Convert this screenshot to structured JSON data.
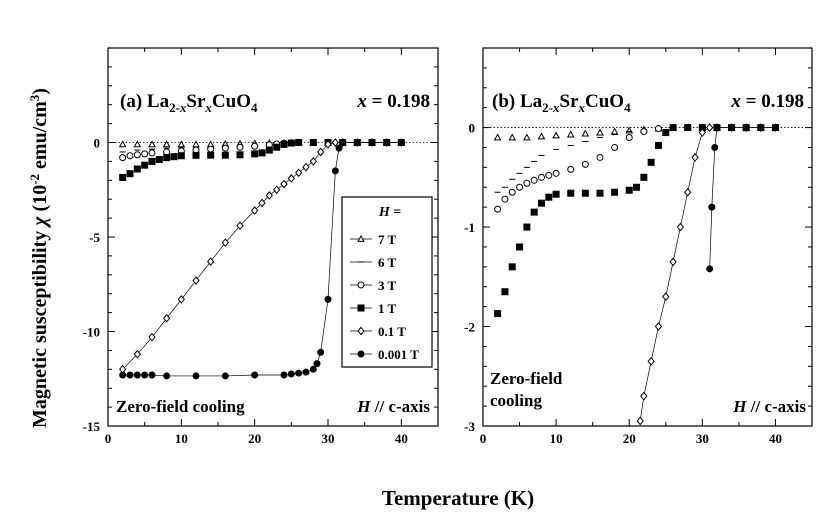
{
  "figure": {
    "xlabel": "Temperature (K)",
    "ylabel_text": "Magnetic susceptibility",
    "ylabel_symbol": "χ",
    "ylabel_units": "(10",
    "ylabel_units_exp": "-2",
    "ylabel_units_mid": " emu/cm",
    "ylabel_units_exp2": "3",
    "ylabel_units_end": ")"
  },
  "panel_a": {
    "label_prefix": "(a) La",
    "sub1": "2-",
    "sub1_italic": "x",
    "mid": "Sr",
    "sub2_italic": "x",
    "tail": "CuO",
    "sub3": "4",
    "x_label_italic": "x",
    "x_value": " = 0.198",
    "cooling": "Zero-field cooling",
    "axis_note_italic": "H",
    "axis_note": " // c-axis",
    "legend_title_italic": "H",
    "legend_title": " =",
    "legend": [
      "7 T",
      "6 T",
      "3 T",
      "1 T",
      "0.1 T",
      "0.001 T"
    ]
  },
  "panel_b": {
    "label_prefix": "(b) La",
    "sub1": "2-",
    "sub1_italic": "x",
    "mid": "Sr",
    "sub2_italic": "x",
    "tail": "CuO",
    "sub3": "4",
    "x_label_italic": "x",
    "x_value": " = 0.198",
    "cooling_line1": "Zero-field",
    "cooling_line2": "cooling",
    "axis_note_italic": "H",
    "axis_note": " // c-axis"
  },
  "chart_data": [
    {
      "type": "scatter",
      "title": "(a) La2-xSrxCuO4  x = 0.198",
      "xlabel": "Temperature (K)",
      "ylabel": "Magnetic susceptibility χ (10-2 emu/cm3)",
      "xlim": [
        0,
        45
      ],
      "ylim": [
        -15,
        5
      ],
      "xticks": [
        0,
        10,
        20,
        30,
        40
      ],
      "yticks": [
        -15,
        -10,
        -5,
        0
      ],
      "legend_position": "right-center",
      "series": [
        {
          "name": "7 T",
          "marker": "triangle-open",
          "x": [
            2,
            4,
            6,
            8,
            10,
            12,
            14,
            16,
            18,
            20,
            22,
            24,
            26,
            28,
            30,
            32,
            34,
            36,
            38,
            40
          ],
          "y": [
            -0.1,
            -0.1,
            -0.1,
            -0.1,
            -0.1,
            -0.1,
            -0.1,
            -0.08,
            -0.07,
            -0.05,
            -0.03,
            -0.02,
            -0.01,
            0,
            0,
            0,
            0,
            0,
            0,
            0
          ]
        },
        {
          "name": "6 T",
          "marker": "dash",
          "x": [
            2,
            4,
            6,
            8,
            10,
            12,
            14,
            16,
            18,
            20,
            22,
            24,
            26,
            28,
            30,
            32,
            34,
            36,
            38,
            40
          ],
          "y": [
            -0.5,
            -0.4,
            -0.35,
            -0.3,
            -0.28,
            -0.25,
            -0.22,
            -0.2,
            -0.15,
            -0.1,
            -0.06,
            -0.02,
            -0.01,
            0,
            0,
            0,
            0,
            0,
            0,
            0
          ]
        },
        {
          "name": "3 T",
          "marker": "circle-open",
          "x": [
            2,
            3,
            4,
            5,
            6,
            8,
            10,
            12,
            14,
            16,
            18,
            20,
            22,
            23,
            24,
            25,
            26,
            28,
            30,
            32,
            34,
            36,
            38,
            40
          ],
          "y": [
            -0.8,
            -0.7,
            -0.65,
            -0.6,
            -0.55,
            -0.5,
            -0.45,
            -0.4,
            -0.35,
            -0.3,
            -0.25,
            -0.2,
            -0.12,
            -0.08,
            -0.03,
            -0.01,
            0,
            0,
            0,
            0,
            0,
            0,
            0,
            0
          ]
        },
        {
          "name": "1 T",
          "marker": "square-filled",
          "x": [
            2,
            3,
            4,
            5,
            6,
            7,
            8,
            9,
            10,
            12,
            14,
            16,
            18,
            20,
            21,
            22,
            23,
            24,
            25,
            26,
            28,
            30,
            32,
            34,
            36,
            38,
            40
          ],
          "y": [
            -1.85,
            -1.65,
            -1.4,
            -1.2,
            -1.0,
            -0.9,
            -0.8,
            -0.75,
            -0.7,
            -0.68,
            -0.67,
            -0.67,
            -0.65,
            -0.6,
            -0.55,
            -0.4,
            -0.25,
            -0.1,
            -0.03,
            0,
            0,
            0,
            0,
            0,
            0,
            0,
            0
          ]
        },
        {
          "name": "0.1 T",
          "marker": "diamond-open",
          "x": [
            2,
            4,
            6,
            8,
            10,
            12,
            14,
            16,
            18,
            20,
            21,
            22,
            23,
            24,
            25,
            26,
            27,
            28,
            29,
            30,
            31,
            32,
            34,
            36,
            38,
            40
          ],
          "y": [
            -12.0,
            -11.2,
            -10.3,
            -9.3,
            -8.3,
            -7.3,
            -6.3,
            -5.3,
            -4.4,
            -3.6,
            -3.2,
            -2.8,
            -2.5,
            -2.2,
            -1.9,
            -1.6,
            -1.3,
            -1.0,
            -0.5,
            -0.1,
            0,
            0,
            0,
            0,
            0,
            0
          ]
        },
        {
          "name": "0.001 T",
          "marker": "circle-filled",
          "x": [
            2,
            3,
            4,
            5,
            6,
            8,
            12,
            16,
            20,
            24,
            25,
            26,
            27,
            28,
            28.5,
            29,
            30,
            31,
            31.5,
            32,
            34,
            36,
            38,
            40
          ],
          "y": [
            -12.3,
            -12.3,
            -12.3,
            -12.3,
            -12.3,
            -12.35,
            -12.35,
            -12.35,
            -12.3,
            -12.3,
            -12.25,
            -12.2,
            -12.15,
            -12.0,
            -11.7,
            -11.1,
            -8.3,
            -1.5,
            -0.3,
            0,
            0,
            0,
            0,
            0
          ]
        }
      ]
    },
    {
      "type": "scatter",
      "title": "(b) La2-xSrxCuO4  x = 0.198",
      "xlabel": "Temperature (K)",
      "ylabel": "Magnetic susceptibility χ (10-2 emu/cm3)",
      "xlim": [
        0,
        45
      ],
      "ylim": [
        -3,
        0.8
      ],
      "xticks": [
        0,
        10,
        20,
        30,
        40
      ],
      "yticks": [
        -3,
        -2,
        -1,
        0
      ],
      "series": [
        {
          "name": "7 T",
          "marker": "triangle-open",
          "x": [
            2,
            4,
            6,
            8,
            10,
            12,
            14,
            16,
            18,
            20,
            22,
            24,
            26,
            28,
            30,
            32,
            34,
            36,
            38,
            40
          ],
          "y": [
            -0.1,
            -0.1,
            -0.1,
            -0.09,
            -0.08,
            -0.07,
            -0.06,
            -0.05,
            -0.04,
            -0.03,
            -0.02,
            -0.01,
            0,
            0,
            0,
            0,
            0,
            0,
            0,
            0
          ]
        },
        {
          "name": "6 T",
          "marker": "dash",
          "x": [
            2,
            3,
            4,
            5,
            6,
            7,
            8,
            10,
            12,
            14,
            16,
            18,
            20,
            22,
            24,
            26,
            28,
            30,
            32,
            34,
            36,
            38,
            40
          ],
          "y": [
            -0.65,
            -0.6,
            -0.52,
            -0.46,
            -0.4,
            -0.34,
            -0.28,
            -0.22,
            -0.18,
            -0.14,
            -0.1,
            -0.07,
            -0.04,
            -0.02,
            -0.01,
            0,
            0,
            0,
            0,
            0,
            0,
            0,
            0
          ]
        },
        {
          "name": "3 T",
          "marker": "circle-open",
          "x": [
            2,
            3,
            4,
            5,
            6,
            7,
            8,
            9,
            10,
            12,
            14,
            16,
            18,
            20,
            22,
            24,
            26,
            28,
            30,
            32,
            34,
            36,
            38,
            40
          ],
          "y": [
            -0.82,
            -0.72,
            -0.65,
            -0.6,
            -0.56,
            -0.53,
            -0.5,
            -0.48,
            -0.46,
            -0.42,
            -0.37,
            -0.3,
            -0.2,
            -0.1,
            -0.04,
            -0.01,
            0,
            0,
            0,
            0,
            0,
            0,
            0,
            0
          ]
        },
        {
          "name": "1 T",
          "marker": "square-filled",
          "x": [
            2,
            3,
            4,
            5,
            6,
            7,
            8,
            9,
            10,
            12,
            14,
            16,
            18,
            20,
            21,
            22,
            23,
            24,
            25,
            26,
            28,
            30,
            32,
            34,
            36,
            38,
            40
          ],
          "y": [
            -1.87,
            -1.65,
            -1.4,
            -1.2,
            -1.0,
            -0.85,
            -0.76,
            -0.7,
            -0.67,
            -0.66,
            -0.66,
            -0.66,
            -0.65,
            -0.63,
            -0.6,
            -0.5,
            -0.35,
            -0.18,
            -0.05,
            0,
            0,
            0,
            0,
            0,
            0,
            0,
            0
          ]
        },
        {
          "name": "0.1 T",
          "marker": "diamond-open",
          "x": [
            21.5,
            22,
            23,
            24,
            25,
            26,
            27,
            28,
            29,
            30,
            31,
            32,
            34,
            36,
            38,
            40
          ],
          "y": [
            -2.95,
            -2.7,
            -2.35,
            -2.0,
            -1.7,
            -1.35,
            -1.0,
            -0.65,
            -0.3,
            -0.05,
            0,
            0,
            0,
            0,
            0,
            0
          ]
        },
        {
          "name": "0.001 T",
          "marker": "circle-filled",
          "x": [
            31,
            31.3,
            31.7,
            32,
            34,
            36,
            38,
            40
          ],
          "y": [
            -1.42,
            -0.8,
            -0.2,
            0,
            0,
            0,
            0,
            0
          ]
        }
      ]
    }
  ]
}
